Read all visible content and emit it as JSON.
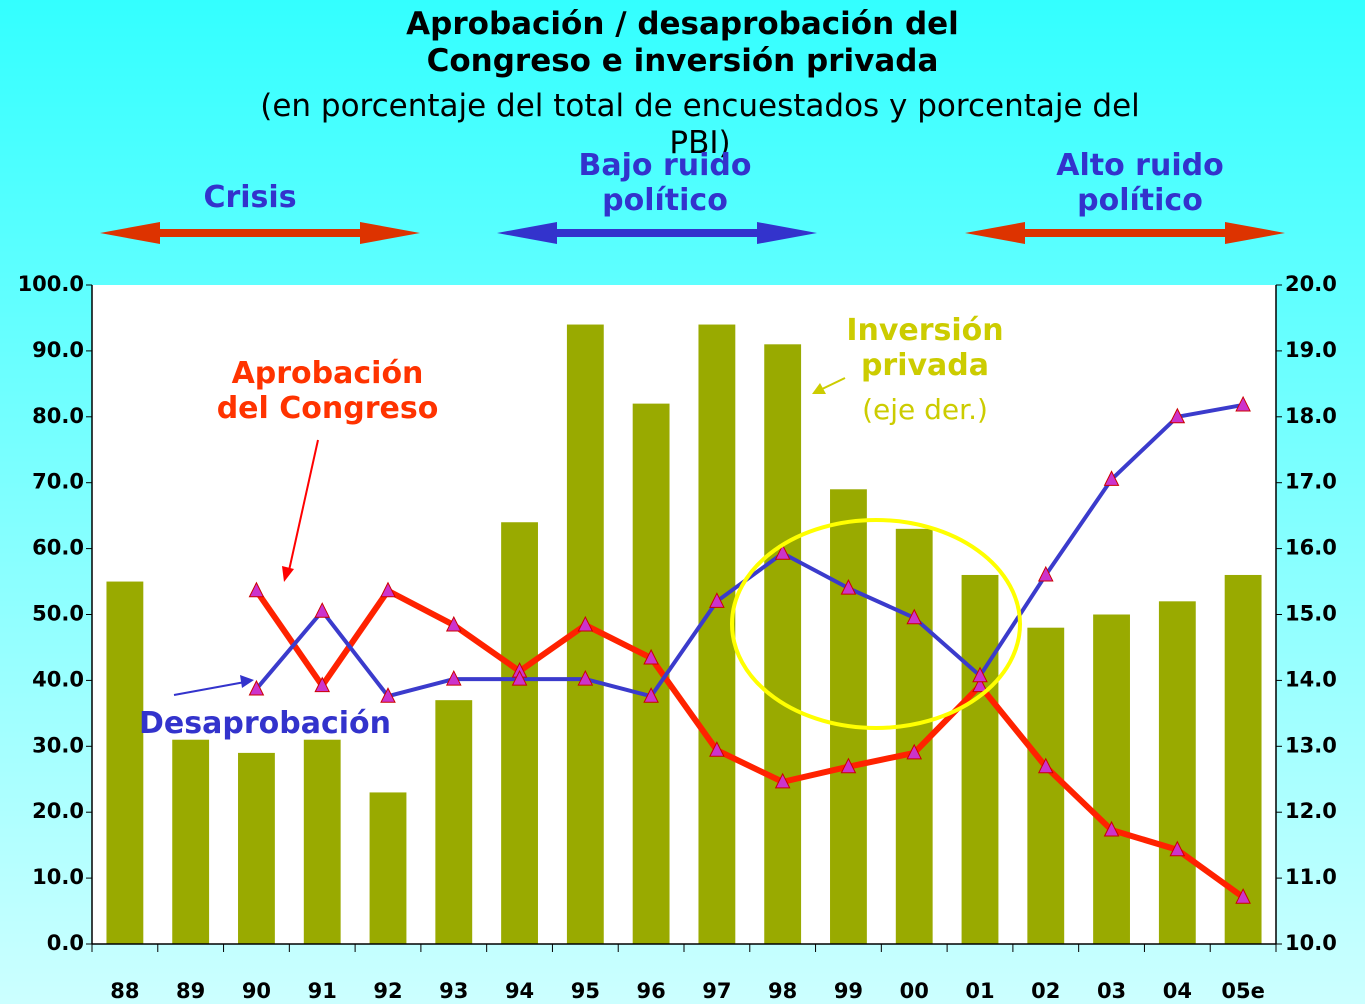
{
  "chart_data": {
    "type": "bar-line",
    "title": "Aprobación / desaprobación del Congreso e inversión privada",
    "subtitle": "(en porcentaje del total de encuestados y porcentaje del PBI)",
    "periods": [
      "Crisis",
      "Bajo ruido político",
      "Alto ruido político"
    ],
    "annotations": [
      "(eje der.)"
    ],
    "categories": [
      "88",
      "89",
      "90",
      "91",
      "92",
      "93",
      "94",
      "95",
      "96",
      "97",
      "98",
      "99",
      "00",
      "01",
      "02",
      "03",
      "04",
      "05e"
    ],
    "series": [
      {
        "name": "Inversión privada",
        "type": "bar",
        "axis": "y2",
        "color": "#99aa00",
        "values": [
          15.5,
          13.1,
          12.9,
          13.1,
          12.3,
          13.7,
          16.4,
          19.4,
          18.2,
          19.4,
          19.1,
          16.9,
          16.3,
          15.6,
          14.8,
          15.0,
          15.2,
          15.6
        ]
      },
      {
        "name": "Aprobación del Congreso",
        "type": "line",
        "color": "#ff2200",
        "values": [
          null,
          null,
          53.6,
          39.2,
          53.6,
          48.4,
          41.4,
          48.4,
          43.4,
          29.4,
          24.6,
          26.9,
          29.0,
          39.2,
          26.9,
          17.3,
          14.3,
          7.1
        ]
      },
      {
        "name": "Desaprobación",
        "type": "line",
        "color": "#3b3bcc",
        "values": [
          null,
          null,
          38.7,
          50.5,
          37.6,
          40.2,
          40.2,
          40.2,
          37.6,
          52.0,
          59.3,
          54.0,
          49.5,
          40.7,
          56.0,
          70.5,
          80.0,
          81.8
        ]
      }
    ],
    "ylim": [
      0,
      100
    ],
    "yticks": [
      {
        "value": 0,
        "label": "0.0"
      },
      {
        "value": 10,
        "label": "10.0"
      },
      {
        "value": 20,
        "label": "20.0"
      },
      {
        "value": 30,
        "label": "30.0"
      },
      {
        "value": 40,
        "label": "40.0"
      },
      {
        "value": 50,
        "label": "50.0"
      },
      {
        "value": 60,
        "label": "60.0"
      },
      {
        "value": 70,
        "label": "70.0"
      },
      {
        "value": 80,
        "label": "80.0"
      },
      {
        "value": 90,
        "label": "90.0"
      },
      {
        "value": 100,
        "label": "100.0"
      }
    ],
    "y2lim": [
      10,
      20
    ],
    "y2ticks": [
      {
        "value": 10,
        "label": "10.0"
      },
      {
        "value": 11,
        "label": "11.0"
      },
      {
        "value": 12,
        "label": "12.0"
      },
      {
        "value": 13,
        "label": "13.0"
      },
      {
        "value": 14,
        "label": "14.0"
      },
      {
        "value": 15,
        "label": "15.0"
      },
      {
        "value": 16,
        "label": "16.0"
      },
      {
        "value": 17,
        "label": "17.0"
      },
      {
        "value": 18,
        "label": "18.0"
      },
      {
        "value": 19,
        "label": "19.0"
      },
      {
        "value": 20,
        "label": "20.0"
      }
    ],
    "marker_color": "#cc33cc"
  }
}
